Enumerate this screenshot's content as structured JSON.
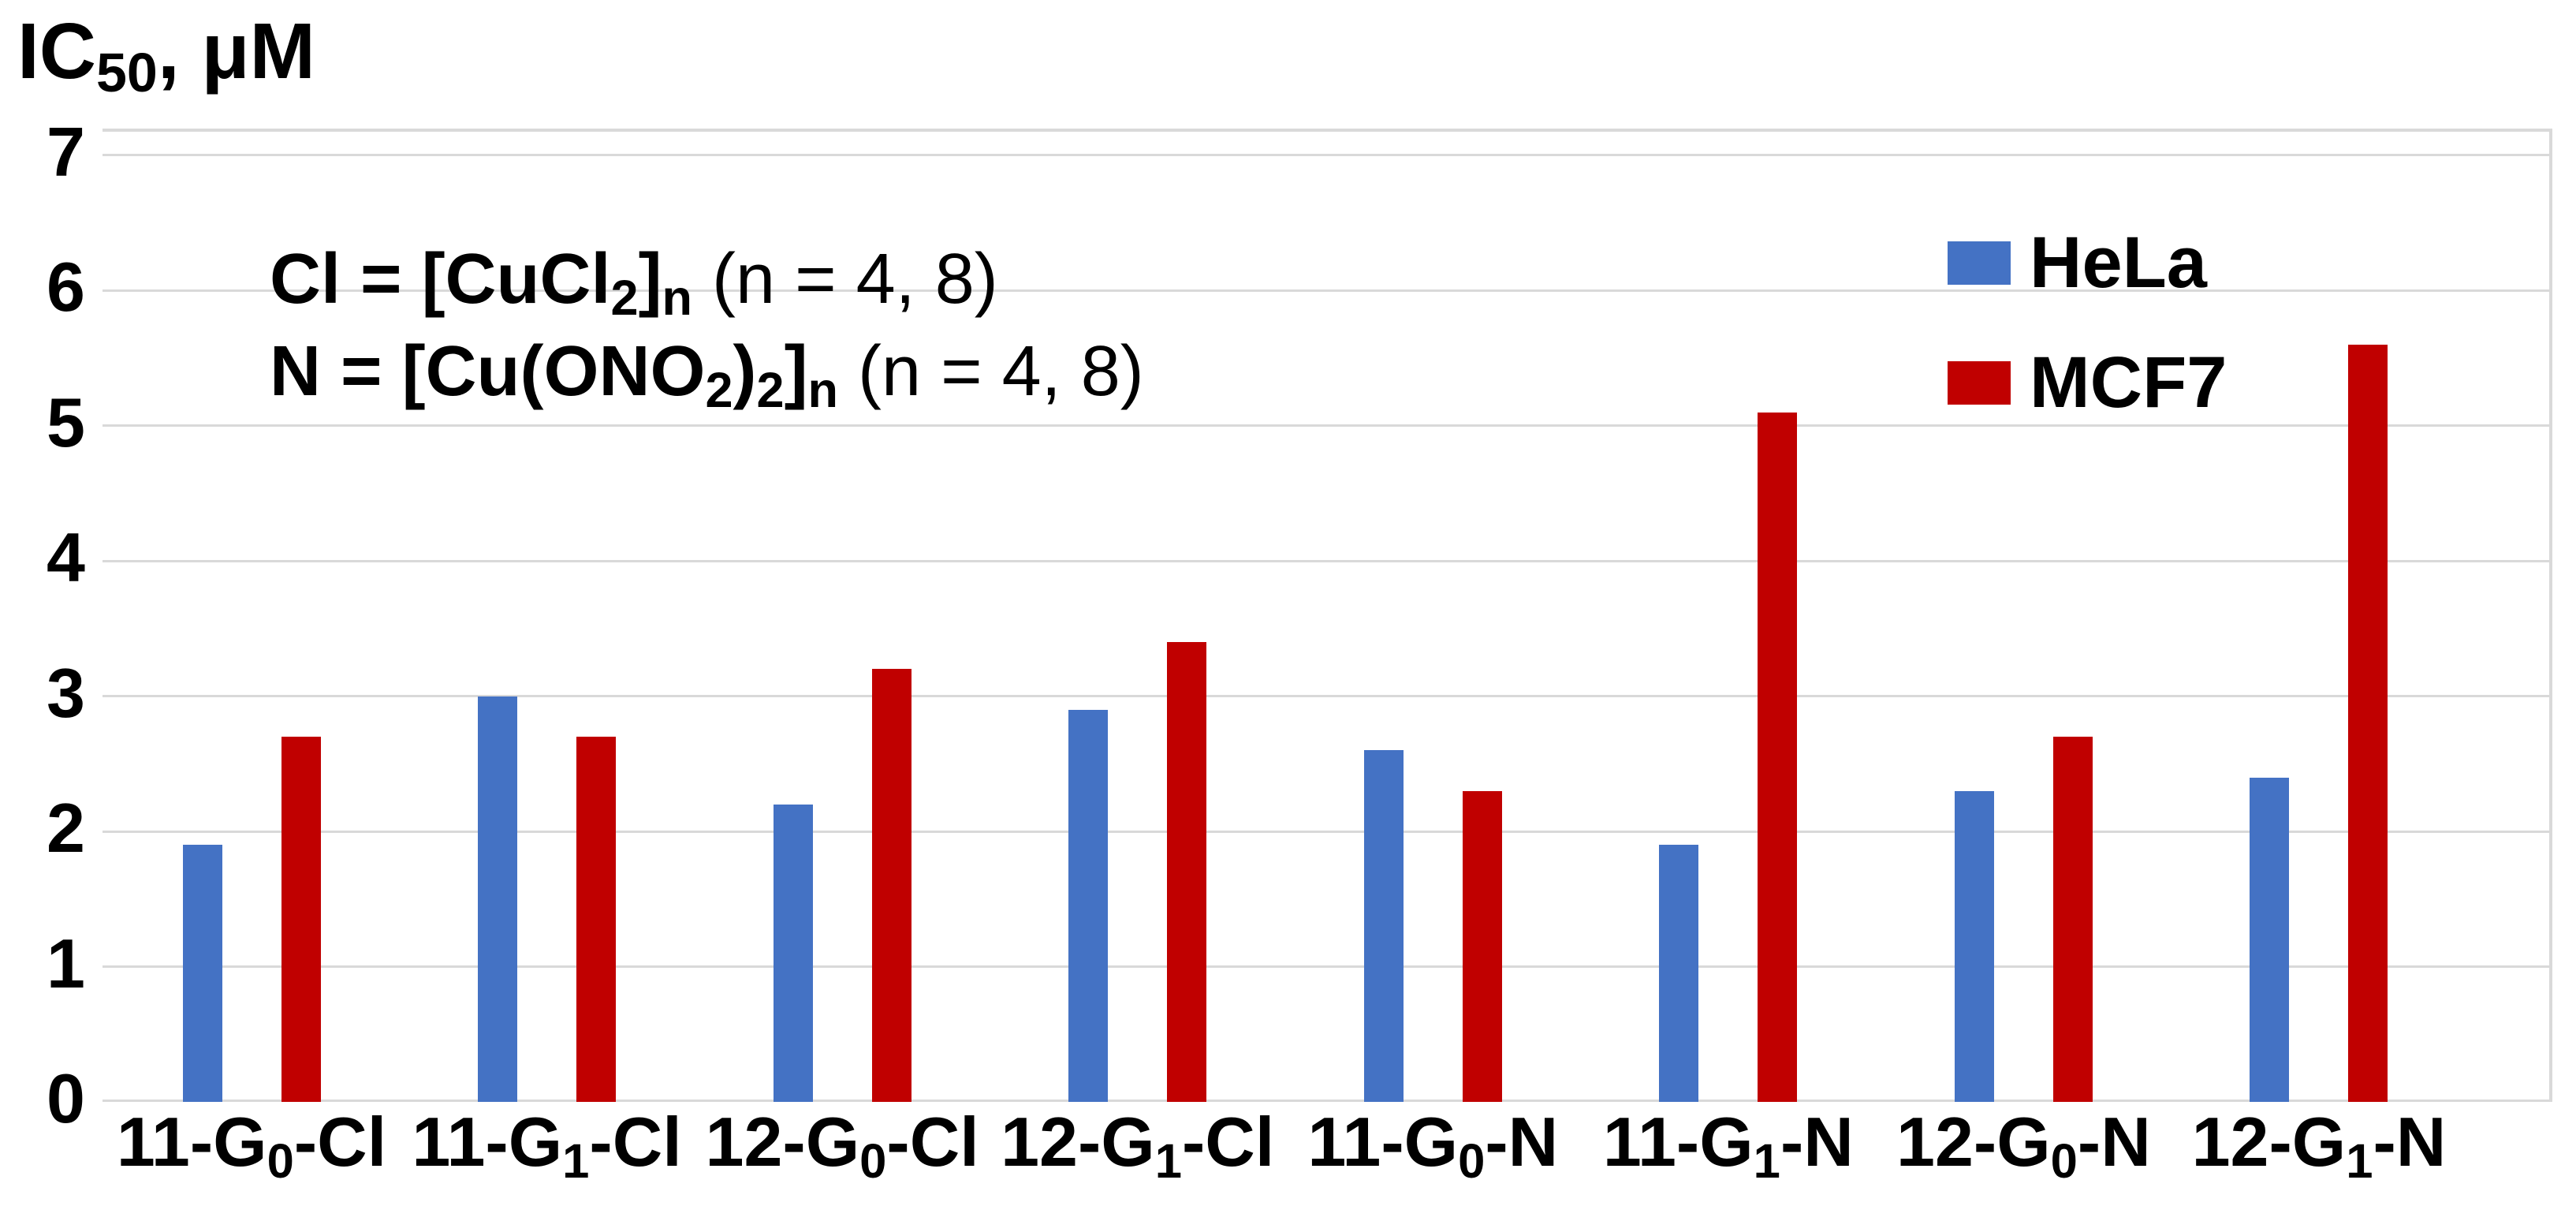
{
  "title": {
    "parts": [
      {
        "t": "IC",
        "sub": false
      },
      {
        "t": "50",
        "sub": true
      },
      {
        "t": ", μM",
        "sub": false
      }
    ]
  },
  "annotation": {
    "lines": [
      {
        "parts": [
          {
            "t": "Cl = [CuCl",
            "b": true,
            "sub": false
          },
          {
            "t": "2",
            "b": true,
            "sub": true
          },
          {
            "t": "]",
            "b": true,
            "sub": false
          },
          {
            "t": "n",
            "b": true,
            "sub": true
          },
          {
            "t": " (n = 4, 8)",
            "b": false,
            "sub": false
          }
        ]
      },
      {
        "parts": [
          {
            "t": "N = [Cu(ONO",
            "b": true,
            "sub": false
          },
          {
            "t": "2",
            "b": true,
            "sub": true
          },
          {
            "t": ")",
            "b": true,
            "sub": false
          },
          {
            "t": "2",
            "b": true,
            "sub": true
          },
          {
            "t": "]",
            "b": true,
            "sub": false
          },
          {
            "t": "n",
            "b": true,
            "sub": true
          },
          {
            "t": " (n = 4, 8)",
            "b": false,
            "sub": false
          }
        ]
      }
    ]
  },
  "chart_data": {
    "type": "bar",
    "title": "IC50, μM",
    "xlabel": "",
    "ylabel": "IC50, μM",
    "ylim": [
      0,
      7
    ],
    "yticks": [
      0,
      1,
      2,
      3,
      4,
      5,
      6,
      7
    ],
    "grid": true,
    "legend_position": "top-right-inside",
    "gridline_color": "#d9d9d9",
    "categories": [
      {
        "pre": "11-G",
        "sub": "0",
        "post": "-Cl"
      },
      {
        "pre": "11-G",
        "sub": "1",
        "post": "-Cl"
      },
      {
        "pre": "12-G",
        "sub": "0",
        "post": "-Cl"
      },
      {
        "pre": "12-G",
        "sub": "1",
        "post": "-Cl"
      },
      {
        "pre": "11-G",
        "sub": "0",
        "post": "-N"
      },
      {
        "pre": "11-G",
        "sub": "1",
        "post": "-N"
      },
      {
        "pre": "12-G",
        "sub": "0",
        "post": "-N"
      },
      {
        "pre": "12-G",
        "sub": "1",
        "post": "-N"
      }
    ],
    "series": [
      {
        "name": "HeLa",
        "color": "#4472C4",
        "values": [
          1.9,
          3.0,
          2.2,
          2.9,
          2.6,
          1.9,
          2.3,
          2.4
        ]
      },
      {
        "name": "MCF7",
        "color": "#C00000",
        "values": [
          2.7,
          2.7,
          3.2,
          3.4,
          2.3,
          5.1,
          2.7,
          5.6
        ]
      }
    ]
  }
}
